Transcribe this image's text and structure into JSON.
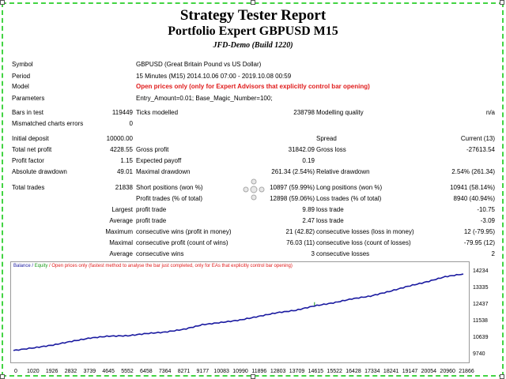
{
  "header": {
    "title": "Strategy Tester Report",
    "subtitle": "Portfolio Expert GBPUSD M15",
    "server": "JFD-Demo (Build 1220)"
  },
  "info": {
    "symbol_label": "Symbol",
    "symbol": "GBPUSD (Great Britain Pound vs US Dollar)",
    "period_label": "Period",
    "period": "15 Minutes (M15) 2014.10.06 07:00 - 2019.10.08 00:59",
    "model_label": "Model",
    "model": "Open prices only (only for Expert Advisors that explicitly control bar opening)",
    "params_label": "Parameters",
    "params": "Entry_Amount=0.01; Base_Magic_Number=100;"
  },
  "stats": {
    "bars_label": "Bars in test",
    "bars": "119449",
    "ticks_label": "Ticks modelled",
    "ticks": "238798",
    "quality_label": "Modelling quality",
    "quality": "n/a",
    "mismatch_label": "Mismatched charts errors",
    "mismatch": "0",
    "deposit_label": "Initial deposit",
    "deposit": "10000.00",
    "spread_label": "Spread",
    "spread": "Current (13)",
    "netprofit_label": "Total net profit",
    "netprofit": "4228.55",
    "grossprofit_label": "Gross profit",
    "grossprofit": "31842.09",
    "grossloss_label": "Gross loss",
    "grossloss": "-27613.54",
    "pf_label": "Profit factor",
    "pf": "1.15",
    "payoff_label": "Expected payoff",
    "payoff": "0.19",
    "absdd_label": "Absolute drawdown",
    "absdd": "49.01",
    "maxdd_label": "Maximal drawdown",
    "maxdd": "261.34 (2.54%)",
    "reldd_label": "Relative drawdown",
    "reldd": "2.54% (261.34)",
    "trades_label": "Total trades",
    "trades": "21838",
    "short_label": "Short positions (won %)",
    "short": "10897 (59.99%)",
    "long_label": "Long positions (won %)",
    "long": "10941 (58.14%)",
    "profit_trades_label": "Profit trades (% of total)",
    "profit_trades": "12898 (59.06%)",
    "loss_trades_label": "Loss trades (% of total)",
    "loss_trades": "8940 (40.94%)",
    "largest_label": "Largest",
    "largest_profit_label": "profit trade",
    "largest_profit": "9.89",
    "largest_loss_label": "loss trade",
    "largest_loss": "-10.75",
    "average_label": "Average",
    "average_profit_label": "profit trade",
    "average_profit": "2.47",
    "average_loss_label": "loss trade",
    "average_loss": "-3.09",
    "maximum_label": "Maximum",
    "max_cw_label": "consecutive wins (profit in money)",
    "max_cw": "21 (42.82)",
    "max_cl_label": "consecutive losses (loss in money)",
    "max_cl": "12 (-79.95)",
    "maximal_label": "Maximal",
    "maximal_cp_label": "consecutive profit (count of wins)",
    "maximal_cp": "76.03 (11)",
    "maximal_cl_label": "consecutive loss (count of losses)",
    "maximal_cl": "-79.95 (12)",
    "avg2_label": "Average",
    "avg_cw_label": "consecutive wins",
    "avg_cw": "3",
    "avg_cl_label": "consecutive losses",
    "avg_cl": "2"
  },
  "colors": {
    "balance": "#1a1aa0",
    "equity": "#1a9a1a",
    "accent": "#e01b1b",
    "frame": "#43d443"
  },
  "icons": {
    "move": "move-cross-icon"
  },
  "chart_data": {
    "type": "line",
    "legend_balance": "Balance",
    "legend_sep": " / ",
    "legend_equity": "Equity",
    "legend_note": " / Open prices only (fastest method to analyse the bar just completed, only for EAs that explicitly control bar opening)",
    "x_ticks": [
      "0",
      "1020",
      "1926",
      "2832",
      "3739",
      "4645",
      "5552",
      "6458",
      "7364",
      "8271",
      "9177",
      "10083",
      "10990",
      "11896",
      "12803",
      "13709",
      "14615",
      "15522",
      "16428",
      "17334",
      "18241",
      "19147",
      "20054",
      "20960",
      "21866"
    ],
    "y_ticks": [
      "14234",
      "13335",
      "12437",
      "11538",
      "10639",
      "9740"
    ],
    "ylim": [
      9740,
      14234
    ],
    "xlim": [
      0,
      21838
    ],
    "series": [
      {
        "name": "Balance",
        "x": [
          0,
          1020,
          1926,
          2832,
          3739,
          4645,
          5552,
          6458,
          7364,
          8271,
          9177,
          10083,
          10990,
          11896,
          12803,
          13709,
          14615,
          15522,
          16428,
          17334,
          18241,
          19147,
          20054,
          20960,
          21838
        ],
        "values": [
          10000,
          10150,
          10300,
          10500,
          10680,
          10780,
          10800,
          10920,
          11000,
          11150,
          11400,
          11520,
          11650,
          11850,
          12050,
          12180,
          12420,
          12580,
          12800,
          12950,
          13200,
          13480,
          13720,
          14000,
          14150
        ]
      }
    ],
    "equity_spike": {
      "x": 14615,
      "values": [
        12420,
        12620
      ]
    }
  }
}
